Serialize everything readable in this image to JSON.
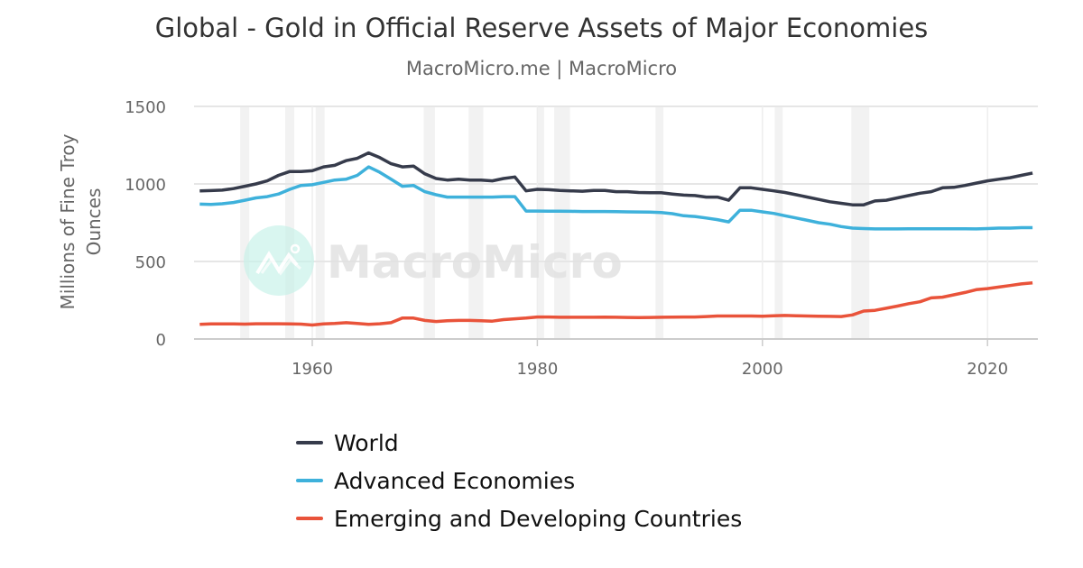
{
  "chart_data": {
    "type": "line",
    "title": "Global - Gold in Official Reserve Assets of Major Economies",
    "subtitle": "MacroMicro.me | MacroMicro",
    "ylabel": "Millions of Fine Troy Ounces",
    "ylabel_lines": [
      "Millions of Fine Troy",
      "Ounces"
    ],
    "xlim": [
      1949.5,
      2025
    ],
    "ylim": [
      0,
      1500
    ],
    "yticks": [
      0,
      500,
      1000,
      1500
    ],
    "yticklabels": [
      "0",
      "500",
      "1000",
      "1500"
    ],
    "xticks": [
      1960,
      1980,
      2000,
      2020
    ],
    "xticklabels": [
      "1960",
      "1980",
      "2000",
      "2020"
    ],
    "grid": true,
    "legend_position": "bottom",
    "watermark": "MacroMicro",
    "recession_bands": [
      [
        1953.6,
        1954.4
      ],
      [
        1957.6,
        1958.4
      ],
      [
        1960.3,
        1961.1
      ],
      [
        1969.9,
        1970.9
      ],
      [
        1973.9,
        1975.2
      ],
      [
        1980.0,
        1980.6
      ],
      [
        1981.5,
        1982.9
      ],
      [
        1990.5,
        1991.2
      ],
      [
        2001.1,
        2001.8
      ],
      [
        2007.9,
        2009.5
      ]
    ],
    "x_start": 1950,
    "x_end": 2024,
    "series": [
      {
        "name": "World",
        "color": "#363b4b",
        "values": [
          955,
          957,
          960,
          970,
          985,
          1000,
          1020,
          1055,
          1080,
          1080,
          1085,
          1110,
          1120,
          1150,
          1165,
          1200,
          1170,
          1130,
          1110,
          1115,
          1065,
          1035,
          1025,
          1030,
          1025,
          1025,
          1020,
          1035,
          1045,
          955,
          965,
          963,
          958,
          955,
          953,
          958,
          958,
          950,
          950,
          945,
          943,
          943,
          935,
          928,
          925,
          915,
          915,
          895,
          975,
          975,
          965,
          955,
          945,
          930,
          915,
          900,
          885,
          875,
          865,
          865,
          890,
          895,
          910,
          925,
          940,
          950,
          975,
          978,
          990,
          1005,
          1020,
          1030,
          1040,
          1055,
          1070
        ]
      },
      {
        "name": "Advanced Economies",
        "color": "#3eb1db",
        "values": [
          870,
          868,
          872,
          880,
          895,
          910,
          918,
          935,
          965,
          990,
          995,
          1010,
          1025,
          1030,
          1055,
          1110,
          1075,
          1030,
          985,
          990,
          950,
          930,
          915,
          915,
          915,
          915,
          915,
          918,
          918,
          825,
          825,
          824,
          824,
          823,
          822,
          822,
          822,
          821,
          820,
          819,
          818,
          815,
          808,
          795,
          790,
          780,
          770,
          755,
          830,
          830,
          820,
          810,
          795,
          780,
          765,
          750,
          740,
          725,
          715,
          712,
          710,
          710,
          710,
          711,
          711,
          711,
          711,
          711,
          711,
          710,
          712,
          715,
          715,
          718,
          718
        ]
      },
      {
        "name": "Emerging and Developing Countries",
        "color": "#e9533a",
        "values": [
          95,
          97,
          97,
          97,
          96,
          98,
          98,
          98,
          97,
          96,
          90,
          97,
          100,
          105,
          100,
          95,
          98,
          105,
          135,
          135,
          120,
          113,
          118,
          120,
          120,
          118,
          115,
          125,
          130,
          135,
          142,
          142,
          140,
          140,
          140,
          140,
          141,
          140,
          139,
          138,
          139,
          140,
          141,
          142,
          142,
          145,
          148,
          148,
          148,
          148,
          147,
          150,
          152,
          150,
          148,
          147,
          146,
          145,
          155,
          180,
          185,
          198,
          212,
          228,
          240,
          265,
          270,
          285,
          300,
          318,
          325,
          335,
          345,
          355,
          362
        ]
      }
    ]
  }
}
